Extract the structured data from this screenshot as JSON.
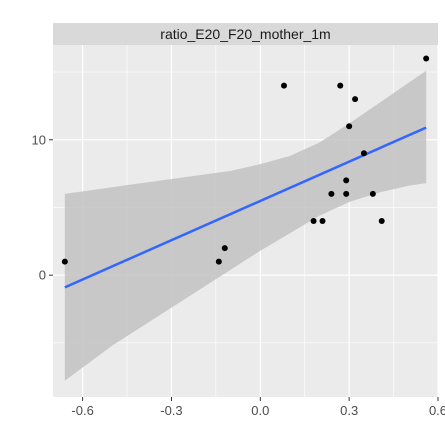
{
  "chart_data": {
    "type": "scatter",
    "facet_title": "ratio_E20_F20_mother_1m",
    "xlabel": "",
    "ylabel": "",
    "xlim": [
      -0.7,
      0.6
    ],
    "ylim": [
      -9,
      17
    ],
    "x_ticks": [
      -0.6,
      -0.3,
      0.0,
      0.3,
      0.6
    ],
    "x_tick_labels": [
      "-0.6",
      "-0.3",
      "0.0",
      "0.3",
      "0.6"
    ],
    "y_ticks": [
      0,
      10
    ],
    "y_tick_labels": [
      "0",
      "10"
    ],
    "grid": true,
    "points": [
      {
        "x": -0.66,
        "y": 1
      },
      {
        "x": -0.14,
        "y": 1
      },
      {
        "x": -0.12,
        "y": 2
      },
      {
        "x": 0.08,
        "y": 14
      },
      {
        "x": 0.18,
        "y": 4
      },
      {
        "x": 0.21,
        "y": 4
      },
      {
        "x": 0.24,
        "y": 6
      },
      {
        "x": 0.27,
        "y": 14
      },
      {
        "x": 0.29,
        "y": 6
      },
      {
        "x": 0.29,
        "y": 7
      },
      {
        "x": 0.3,
        "y": 11
      },
      {
        "x": 0.32,
        "y": 13
      },
      {
        "x": 0.35,
        "y": 9
      },
      {
        "x": 0.38,
        "y": 6
      },
      {
        "x": 0.41,
        "y": 4
      },
      {
        "x": 0.56,
        "y": 16
      }
    ],
    "fit_line": {
      "x": [
        -0.66,
        0.56
      ],
      "y": [
        -0.9,
        10.9
      ]
    },
    "confidence_band": {
      "x": [
        -0.66,
        -0.5,
        -0.3,
        -0.1,
        0.0,
        0.1,
        0.2,
        0.3,
        0.4,
        0.5,
        0.56
      ],
      "lower": [
        -7.8,
        -5.2,
        -2.4,
        0.4,
        1.8,
        3.1,
        4.4,
        5.4,
        6.1,
        6.6,
        6.8
      ],
      "upper": [
        6.0,
        6.5,
        7.1,
        7.7,
        8.2,
        8.8,
        9.8,
        11.2,
        12.7,
        14.2,
        15.1
      ]
    },
    "colors": {
      "panel": "#ebebeb",
      "grid": "#ffffff",
      "strip": "#d9d9d9",
      "point": "#000000",
      "fit": "#3366ff",
      "band": "#c2c2c2"
    }
  }
}
